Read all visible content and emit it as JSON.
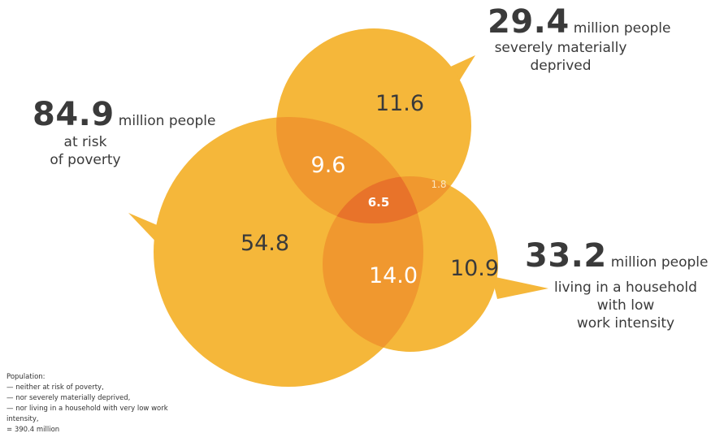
{
  "sets": {
    "poverty": {
      "number": "84.9",
      "unit": "million people",
      "desc1": "at risk",
      "desc2": "of poverty"
    },
    "deprived": {
      "number": "29.4",
      "unit": "million people",
      "desc1": "severely materially",
      "desc2": "deprived"
    },
    "work": {
      "number": "33.2",
      "unit": "million people",
      "desc1": "living in a household",
      "desc2": "with low",
      "desc3": "work intensity"
    }
  },
  "regions": {
    "poverty_only": "54.8",
    "deprived_only": "11.6",
    "work_only": "10.9",
    "poverty_deprived": "9.6",
    "poverty_work": "14.0",
    "deprived_work": "1.8",
    "all_three": "6.5"
  },
  "footnote": {
    "line1": "Population:",
    "line2": "— neither at risk of poverty,",
    "line3": "— nor severely materially deprived,",
    "line4": "— nor living in a household with very low work",
    "line5": "intensity,",
    "line6": "= 390.4 million"
  },
  "colors": {
    "circle": "#f5b73a",
    "overlap": "#f0982f",
    "center": "#e8732a",
    "text": "#3a3a3a",
    "light_text": "#ffffff"
  }
}
